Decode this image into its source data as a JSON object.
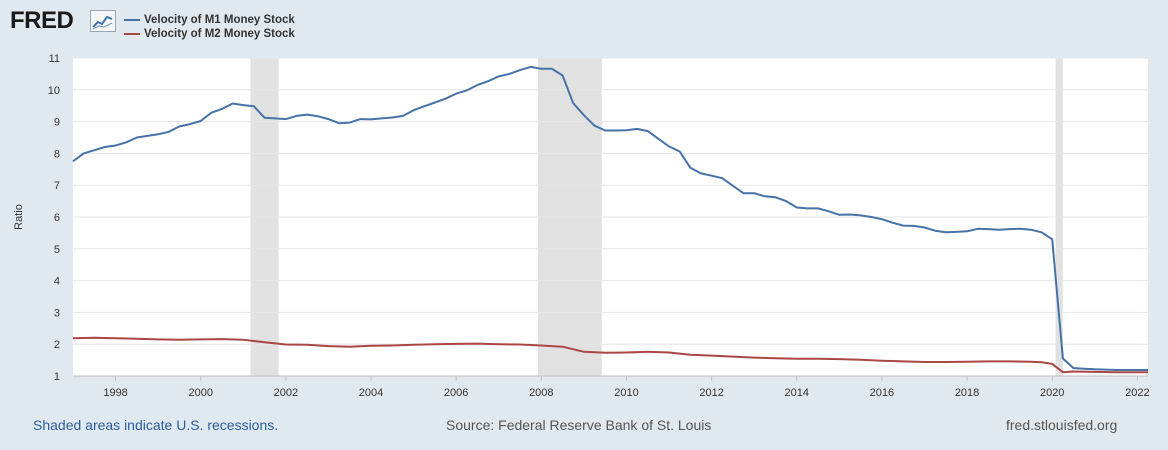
{
  "header": {
    "logo_text": "FRED",
    "logo_icon": "chart-line-icon"
  },
  "legend": [
    {
      "label": "Velocity of M1 Money Stock",
      "color": "#4572a7"
    },
    {
      "label": "Velocity of M2 Money Stock",
      "color": "#aa4643"
    }
  ],
  "footer": {
    "note": "Shaded areas indicate U.S. recessions.",
    "source": "Source: Federal Reserve Bank of St. Louis",
    "url": "fred.stlouisfed.org"
  },
  "chart_data": {
    "type": "line",
    "title": "",
    "xlabel": "",
    "ylabel": "Ratio",
    "xlim": [
      1997.0,
      2022.25
    ],
    "ylim": [
      1,
      11
    ],
    "yticks": [
      "1",
      "2",
      "3",
      "4",
      "5",
      "6",
      "7",
      "8",
      "9",
      "10",
      "11"
    ],
    "xticks": [
      "1998",
      "2000",
      "2002",
      "2004",
      "2006",
      "2008",
      "2010",
      "2012",
      "2014",
      "2016",
      "2018",
      "2020",
      "2022"
    ],
    "grid": true,
    "recessions": [
      {
        "start": 2001.17,
        "end": 2001.83
      },
      {
        "start": 2007.92,
        "end": 2009.42
      },
      {
        "start": 2020.08,
        "end": 2020.25
      }
    ],
    "series": [
      {
        "name": "Velocity of M1 Money Stock",
        "color": "#4572a7",
        "points": [
          [
            1997.0,
            7.75
          ],
          [
            1997.25,
            8.0
          ],
          [
            1997.5,
            8.1
          ],
          [
            1997.75,
            8.2
          ],
          [
            1998.0,
            8.25
          ],
          [
            1998.25,
            8.35
          ],
          [
            1998.5,
            8.5
          ],
          [
            1998.75,
            8.55
          ],
          [
            1999.0,
            8.6
          ],
          [
            1999.25,
            8.68
          ],
          [
            1999.5,
            8.85
          ],
          [
            1999.75,
            8.92
          ],
          [
            2000.0,
            9.02
          ],
          [
            2000.25,
            9.28
          ],
          [
            2000.5,
            9.4
          ],
          [
            2000.75,
            9.57
          ],
          [
            2001.0,
            9.52
          ],
          [
            2001.25,
            9.48
          ],
          [
            2001.5,
            9.12
          ],
          [
            2001.75,
            9.1
          ],
          [
            2002.0,
            9.08
          ],
          [
            2002.25,
            9.18
          ],
          [
            2002.5,
            9.22
          ],
          [
            2002.75,
            9.17
          ],
          [
            2003.0,
            9.08
          ],
          [
            2003.25,
            8.95
          ],
          [
            2003.5,
            8.97
          ],
          [
            2003.75,
            9.08
          ],
          [
            2004.0,
            9.07
          ],
          [
            2004.25,
            9.1
          ],
          [
            2004.5,
            9.13
          ],
          [
            2004.75,
            9.18
          ],
          [
            2005.0,
            9.36
          ],
          [
            2005.25,
            9.48
          ],
          [
            2005.5,
            9.6
          ],
          [
            2005.75,
            9.72
          ],
          [
            2006.0,
            9.88
          ],
          [
            2006.25,
            9.98
          ],
          [
            2006.5,
            10.15
          ],
          [
            2006.75,
            10.27
          ],
          [
            2007.0,
            10.42
          ],
          [
            2007.25,
            10.5
          ],
          [
            2007.5,
            10.62
          ],
          [
            2007.75,
            10.72
          ],
          [
            2008.0,
            10.66
          ],
          [
            2008.25,
            10.66
          ],
          [
            2008.5,
            10.45
          ],
          [
            2008.75,
            9.58
          ],
          [
            2009.0,
            9.2
          ],
          [
            2009.25,
            8.87
          ],
          [
            2009.5,
            8.72
          ],
          [
            2009.75,
            8.72
          ],
          [
            2010.0,
            8.73
          ],
          [
            2010.25,
            8.77
          ],
          [
            2010.5,
            8.7
          ],
          [
            2010.75,
            8.46
          ],
          [
            2011.0,
            8.22
          ],
          [
            2011.25,
            8.06
          ],
          [
            2011.5,
            7.55
          ],
          [
            2011.75,
            7.37
          ],
          [
            2012.0,
            7.3
          ],
          [
            2012.25,
            7.22
          ],
          [
            2012.5,
            6.98
          ],
          [
            2012.75,
            6.75
          ],
          [
            2013.0,
            6.75
          ],
          [
            2013.25,
            6.65
          ],
          [
            2013.5,
            6.62
          ],
          [
            2013.75,
            6.5
          ],
          [
            2014.0,
            6.3
          ],
          [
            2014.25,
            6.27
          ],
          [
            2014.5,
            6.27
          ],
          [
            2014.75,
            6.18
          ],
          [
            2015.0,
            6.07
          ],
          [
            2015.25,
            6.08
          ],
          [
            2015.5,
            6.05
          ],
          [
            2015.75,
            6.0
          ],
          [
            2016.0,
            5.93
          ],
          [
            2016.25,
            5.82
          ],
          [
            2016.5,
            5.73
          ],
          [
            2016.75,
            5.72
          ],
          [
            2017.0,
            5.67
          ],
          [
            2017.25,
            5.57
          ],
          [
            2017.5,
            5.52
          ],
          [
            2017.75,
            5.53
          ],
          [
            2018.0,
            5.55
          ],
          [
            2018.25,
            5.63
          ],
          [
            2018.5,
            5.62
          ],
          [
            2018.75,
            5.6
          ],
          [
            2019.0,
            5.62
          ],
          [
            2019.25,
            5.63
          ],
          [
            2019.5,
            5.6
          ],
          [
            2019.75,
            5.52
          ],
          [
            2020.0,
            5.3
          ],
          [
            2020.25,
            1.55
          ],
          [
            2020.5,
            1.25
          ],
          [
            2020.75,
            1.23
          ],
          [
            2021.0,
            1.21
          ],
          [
            2021.25,
            1.2
          ],
          [
            2021.5,
            1.19
          ],
          [
            2021.75,
            1.19
          ],
          [
            2022.0,
            1.19
          ],
          [
            2022.25,
            1.19
          ]
        ]
      },
      {
        "name": "Velocity of M2 Money Stock",
        "color": "#aa4643",
        "points": [
          [
            1997.0,
            2.19
          ],
          [
            1997.5,
            2.2
          ],
          [
            1998.0,
            2.19
          ],
          [
            1998.5,
            2.17
          ],
          [
            1999.0,
            2.15
          ],
          [
            1999.5,
            2.14
          ],
          [
            2000.0,
            2.15
          ],
          [
            2000.5,
            2.16
          ],
          [
            2001.0,
            2.14
          ],
          [
            2001.5,
            2.06
          ],
          [
            2002.0,
            1.99
          ],
          [
            2002.5,
            1.98
          ],
          [
            2003.0,
            1.94
          ],
          [
            2003.5,
            1.92
          ],
          [
            2004.0,
            1.95
          ],
          [
            2004.5,
            1.96
          ],
          [
            2005.0,
            1.98
          ],
          [
            2005.5,
            2.0
          ],
          [
            2006.0,
            2.01
          ],
          [
            2006.5,
            2.02
          ],
          [
            2007.0,
            2.0
          ],
          [
            2007.5,
            1.99
          ],
          [
            2008.0,
            1.96
          ],
          [
            2008.5,
            1.92
          ],
          [
            2009.0,
            1.76
          ],
          [
            2009.5,
            1.73
          ],
          [
            2010.0,
            1.74
          ],
          [
            2010.5,
            1.76
          ],
          [
            2011.0,
            1.74
          ],
          [
            2011.5,
            1.67
          ],
          [
            2012.0,
            1.64
          ],
          [
            2012.5,
            1.61
          ],
          [
            2013.0,
            1.58
          ],
          [
            2013.5,
            1.56
          ],
          [
            2014.0,
            1.54
          ],
          [
            2014.5,
            1.54
          ],
          [
            2015.0,
            1.53
          ],
          [
            2015.5,
            1.51
          ],
          [
            2016.0,
            1.48
          ],
          [
            2016.5,
            1.46
          ],
          [
            2017.0,
            1.44
          ],
          [
            2017.5,
            1.44
          ],
          [
            2018.0,
            1.45
          ],
          [
            2018.5,
            1.46
          ],
          [
            2019.0,
            1.46
          ],
          [
            2019.5,
            1.45
          ],
          [
            2019.75,
            1.43
          ],
          [
            2020.0,
            1.38
          ],
          [
            2020.25,
            1.12
          ],
          [
            2020.5,
            1.14
          ],
          [
            2021.0,
            1.13
          ],
          [
            2021.5,
            1.12
          ],
          [
            2022.0,
            1.12
          ],
          [
            2022.25,
            1.12
          ]
        ]
      }
    ]
  }
}
